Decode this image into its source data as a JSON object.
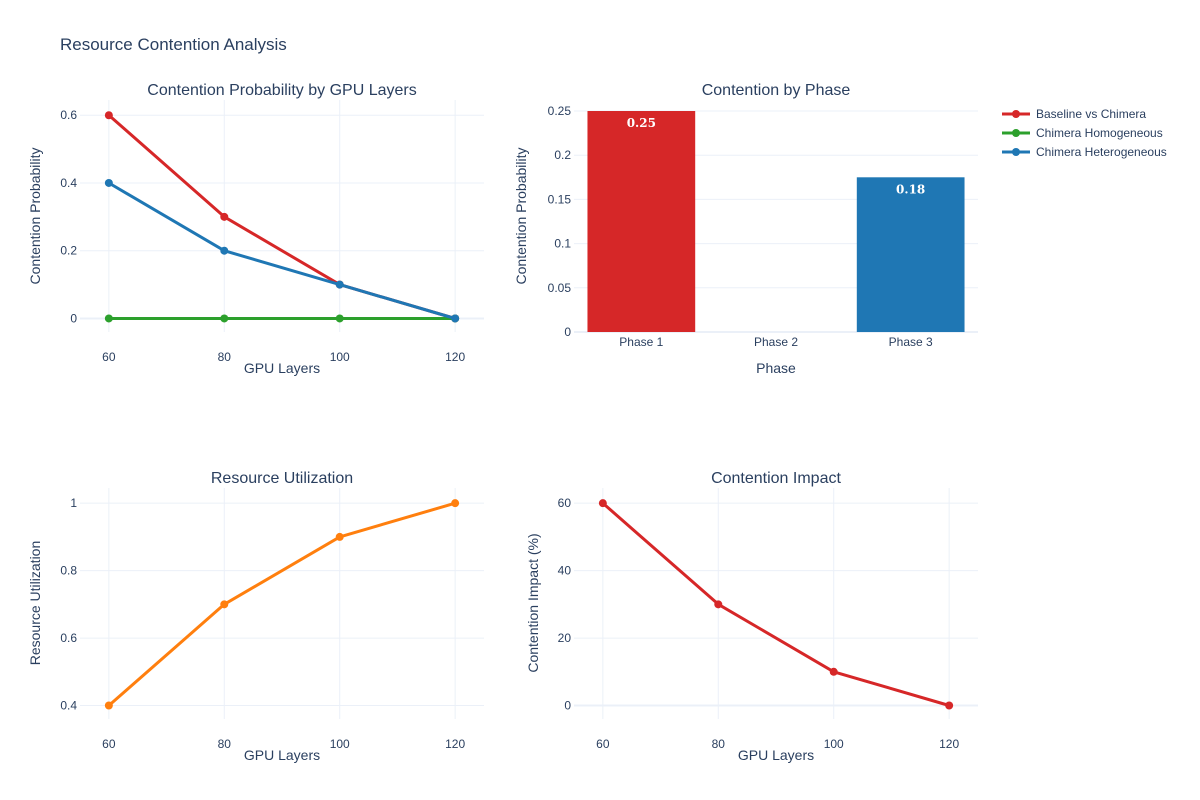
{
  "title": "Resource Contention Analysis",
  "legend": [
    {
      "name": "Baseline vs Chimera",
      "color": "#d62728"
    },
    {
      "name": "Chimera Homogeneous",
      "color": "#2ca02c"
    },
    {
      "name": "Chimera Heterogeneous",
      "color": "#1f77b4"
    }
  ],
  "chart_data": [
    {
      "type": "line",
      "title": "Contention Probability by GPU Layers",
      "xlabel": "GPU Layers",
      "ylabel": "Contention Probability",
      "x": [
        60,
        80,
        100,
        120
      ],
      "xticks": [
        "60",
        "80",
        "100",
        "120"
      ],
      "xlim": [
        55,
        125
      ],
      "yticks": [
        0,
        0.2,
        0.4,
        0.6
      ],
      "ytick_labels": [
        "0",
        "0.2",
        "0.4",
        "0.6"
      ],
      "ylim": [
        -0.04,
        0.645
      ],
      "grid": true,
      "series": [
        {
          "name": "Baseline vs Chimera",
          "color": "#d62728",
          "values": [
            0.6,
            0.3,
            0.1,
            0.0
          ]
        },
        {
          "name": "Chimera Homogeneous",
          "color": "#2ca02c",
          "values": [
            0.0,
            0.0,
            0.0,
            0.0
          ]
        },
        {
          "name": "Chimera Heterogeneous",
          "color": "#1f77b4",
          "values": [
            0.4,
            0.2,
            0.1,
            0.0
          ]
        }
      ]
    },
    {
      "type": "bar",
      "title": "Contention by Phase",
      "xlabel": "Phase",
      "ylabel": "Contention Probability",
      "categories": [
        "Phase 1",
        "Phase 2",
        "Phase 3"
      ],
      "values": [
        0.25,
        0.0,
        0.175
      ],
      "data_labels": [
        "0.25",
        "",
        "0.18"
      ],
      "colors": [
        "#d62728",
        "#2ca02c",
        "#1f77b4"
      ],
      "yticks": [
        0,
        0.05,
        0.1,
        0.15,
        0.2,
        0.25
      ],
      "ytick_labels": [
        "0",
        "0.05",
        "0.1",
        "0.15",
        "0.2",
        "0.25"
      ],
      "ylim": [
        0,
        0.25
      ],
      "grid": true
    },
    {
      "type": "line",
      "title": "Resource Utilization",
      "xlabel": "GPU Layers",
      "ylabel": "Resource Utilization",
      "x": [
        60,
        80,
        100,
        120
      ],
      "xticks": [
        "60",
        "80",
        "100",
        "120"
      ],
      "xlim": [
        55,
        125
      ],
      "yticks": [
        0.4,
        0.6,
        0.8,
        1.0
      ],
      "ytick_labels": [
        "0.4",
        "0.6",
        "0.8",
        "1"
      ],
      "ylim": [
        0.36,
        1.045
      ],
      "grid": true,
      "series": [
        {
          "color": "#ff7f0e",
          "values": [
            0.4,
            0.7,
            0.9,
            1.0
          ]
        }
      ]
    },
    {
      "type": "line",
      "title": "Contention Impact",
      "xlabel": "GPU Layers",
      "ylabel": "Contention Impact (%)",
      "x": [
        60,
        80,
        100,
        120
      ],
      "xticks": [
        "60",
        "80",
        "100",
        "120"
      ],
      "xlim": [
        55,
        125
      ],
      "yticks": [
        0,
        20,
        40,
        60
      ],
      "ytick_labels": [
        "0",
        "20",
        "40",
        "60"
      ],
      "ylim": [
        -4,
        64.5
      ],
      "grid": true,
      "series": [
        {
          "color": "#d62728",
          "values": [
            60,
            30,
            10,
            0
          ]
        }
      ]
    }
  ]
}
